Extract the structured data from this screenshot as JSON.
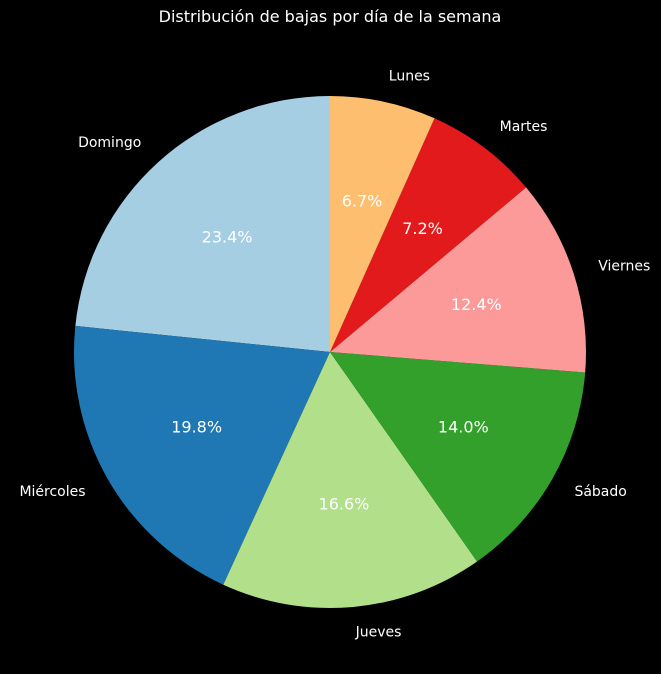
{
  "chart_data": {
    "type": "pie",
    "title": "Distribución de bajas por día de la semana",
    "start": "top",
    "direction": "counterclockwise",
    "slices": [
      {
        "label": "Domingo",
        "value": 23.4,
        "pct_label": "23.4%",
        "color": "#a6cee3"
      },
      {
        "label": "Miércoles",
        "value": 19.8,
        "pct_label": "19.8%",
        "color": "#1f78b4"
      },
      {
        "label": "Jueves",
        "value": 16.6,
        "pct_label": "16.6%",
        "color": "#b2df8a"
      },
      {
        "label": "Sábado",
        "value": 14.0,
        "pct_label": "14.0%",
        "color": "#33a02c"
      },
      {
        "label": "Viernes",
        "value": 12.4,
        "pct_label": "12.4%",
        "color": "#fb9a99"
      },
      {
        "label": "Martes",
        "value": 7.2,
        "pct_label": "7.2%",
        "color": "#e31a1c"
      },
      {
        "label": "Lunes",
        "value": 6.7,
        "pct_label": "6.7%",
        "color": "#fdbf6f"
      }
    ]
  },
  "colors": {
    "background": "#000000",
    "text": "#ffffff"
  }
}
